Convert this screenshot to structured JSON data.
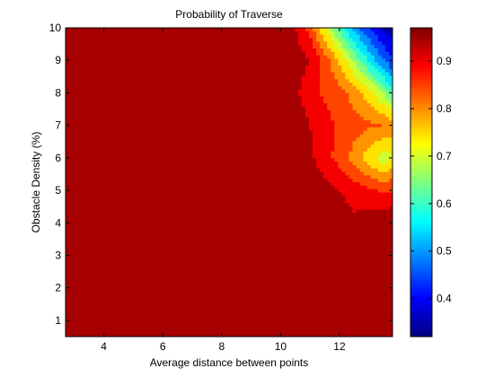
{
  "chart_data": {
    "type": "heatmap",
    "subtype": "filled-contour",
    "title": "Probability of Traverse",
    "xlabel": "Average distance between points",
    "ylabel": "Obstacle Density (%)",
    "xlim": [
      2.7,
      13.8
    ],
    "ylim": [
      0.5,
      10
    ],
    "x_ticks": [
      4,
      6,
      8,
      10,
      12
    ],
    "y_ticks": [
      1,
      2,
      3,
      4,
      5,
      6,
      7,
      8,
      9,
      10
    ],
    "colorbar": {
      "range": [
        0.32,
        0.97
      ],
      "ticks": [
        0.4,
        0.5,
        0.6,
        0.7,
        0.8,
        0.9
      ],
      "colormap": "jet"
    },
    "x": [
      2.7,
      4,
      5,
      6,
      7,
      8,
      9,
      10,
      10.5,
      11,
      11.5,
      12,
      12.5,
      13,
      13.5,
      13.8
    ],
    "y": [
      0.5,
      1,
      2,
      3,
      4,
      5,
      6,
      7,
      8,
      9,
      10
    ],
    "z": [
      [
        0.97,
        0.97,
        0.97,
        0.97,
        0.97,
        0.97,
        0.97,
        0.97,
        0.97,
        0.97,
        0.97,
        0.97,
        0.97,
        0.97,
        0.97,
        0.97
      ],
      [
        0.97,
        0.97,
        0.97,
        0.97,
        0.97,
        0.97,
        0.97,
        0.97,
        0.97,
        0.97,
        0.97,
        0.97,
        0.97,
        0.97,
        0.97,
        0.97
      ],
      [
        0.97,
        0.97,
        0.97,
        0.97,
        0.97,
        0.97,
        0.97,
        0.97,
        0.97,
        0.97,
        0.97,
        0.97,
        0.97,
        0.97,
        0.97,
        0.96
      ],
      [
        0.97,
        0.97,
        0.97,
        0.97,
        0.97,
        0.97,
        0.97,
        0.97,
        0.97,
        0.97,
        0.97,
        0.97,
        0.96,
        0.95,
        0.95,
        0.96
      ],
      [
        0.97,
        0.97,
        0.97,
        0.97,
        0.97,
        0.97,
        0.97,
        0.97,
        0.97,
        0.97,
        0.96,
        0.95,
        0.93,
        0.95,
        0.96,
        0.97
      ],
      [
        0.97,
        0.97,
        0.97,
        0.97,
        0.97,
        0.97,
        0.97,
        0.97,
        0.97,
        0.96,
        0.94,
        0.92,
        0.9,
        0.88,
        0.86,
        0.87
      ],
      [
        0.97,
        0.97,
        0.97,
        0.97,
        0.97,
        0.97,
        0.97,
        0.97,
        0.96,
        0.93,
        0.89,
        0.85,
        0.8,
        0.74,
        0.69,
        0.72
      ],
      [
        0.97,
        0.97,
        0.97,
        0.97,
        0.97,
        0.97,
        0.97,
        0.97,
        0.95,
        0.92,
        0.89,
        0.86,
        0.84,
        0.83,
        0.82,
        0.8
      ],
      [
        0.97,
        0.97,
        0.97,
        0.97,
        0.97,
        0.97,
        0.97,
        0.96,
        0.93,
        0.89,
        0.86,
        0.84,
        0.8,
        0.74,
        0.66,
        0.6
      ],
      [
        0.97,
        0.97,
        0.97,
        0.97,
        0.97,
        0.97,
        0.97,
        0.97,
        0.95,
        0.92,
        0.85,
        0.76,
        0.66,
        0.56,
        0.47,
        0.42
      ],
      [
        0.97,
        0.97,
        0.97,
        0.97,
        0.97,
        0.97,
        0.97,
        0.97,
        0.92,
        0.85,
        0.72,
        0.6,
        0.5,
        0.42,
        0.36,
        0.33
      ]
    ]
  }
}
